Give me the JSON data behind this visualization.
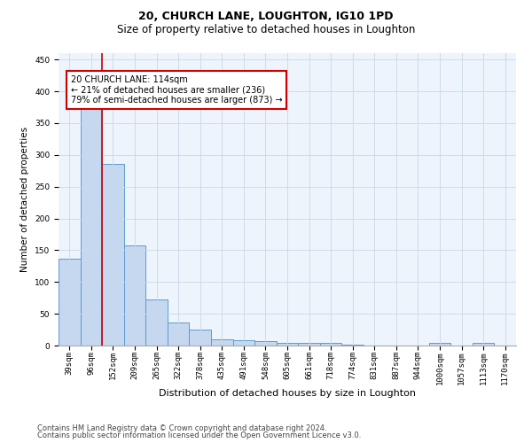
{
  "title1": "20, CHURCH LANE, LOUGHTON, IG10 1PD",
  "title2": "Size of property relative to detached houses in Loughton",
  "xlabel": "Distribution of detached houses by size in Loughton",
  "ylabel": "Number of detached properties",
  "categories": [
    "39sqm",
    "96sqm",
    "152sqm",
    "209sqm",
    "265sqm",
    "322sqm",
    "378sqm",
    "435sqm",
    "491sqm",
    "548sqm",
    "605sqm",
    "661sqm",
    "718sqm",
    "774sqm",
    "831sqm",
    "887sqm",
    "944sqm",
    "1000sqm",
    "1057sqm",
    "1113sqm",
    "1170sqm"
  ],
  "values": [
    136,
    375,
    286,
    158,
    72,
    36,
    25,
    10,
    8,
    7,
    4,
    4,
    4,
    1,
    0,
    0,
    0,
    4,
    0,
    4,
    0
  ],
  "bar_color": "#c5d8f0",
  "bar_edge_color": "#5b9bd5",
  "property_line_x": 1.5,
  "annotation_text": "20 CHURCH LANE: 114sqm\n← 21% of detached houses are smaller (236)\n79% of semi-detached houses are larger (873) →",
  "annotation_box_color": "#ffffff",
  "annotation_box_edge": "#cc0000",
  "vline_color": "#cc0000",
  "ylim": [
    0,
    460
  ],
  "footer1": "Contains HM Land Registry data © Crown copyright and database right 2024.",
  "footer2": "Contains public sector information licensed under the Open Government Licence v3.0.",
  "grid_color": "#c8d8e8",
  "background_color": "#edf4fb",
  "title1_fontsize": 9,
  "title2_fontsize": 8.5,
  "xlabel_fontsize": 8,
  "ylabel_fontsize": 7.5,
  "tick_fontsize": 6.5,
  "annotation_fontsize": 7,
  "footer_fontsize": 6
}
